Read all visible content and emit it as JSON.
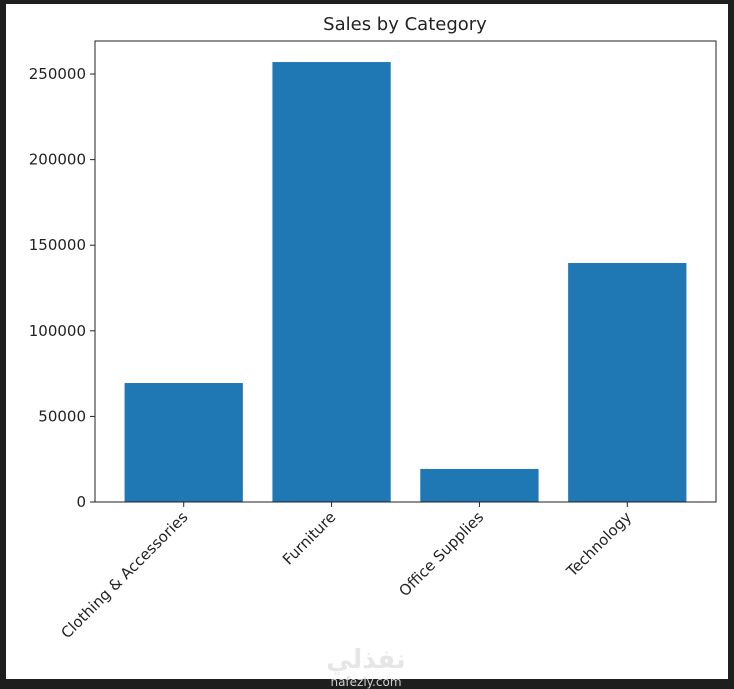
{
  "chart_data": {
    "type": "bar",
    "title": "Sales by Category",
    "categories": [
      "Clothing & Accessories",
      "Furniture",
      "Office Supplies",
      "Technology"
    ],
    "values": [
      69500,
      257000,
      19300,
      139600
    ],
    "color": "#1f77b4",
    "ylim": [
      0,
      269300
    ],
    "yticks": [
      0,
      50000,
      100000,
      150000,
      200000,
      250000
    ],
    "grid": false
  },
  "watermark": {
    "text": "نفذلي",
    "url": "nafezly.com"
  }
}
